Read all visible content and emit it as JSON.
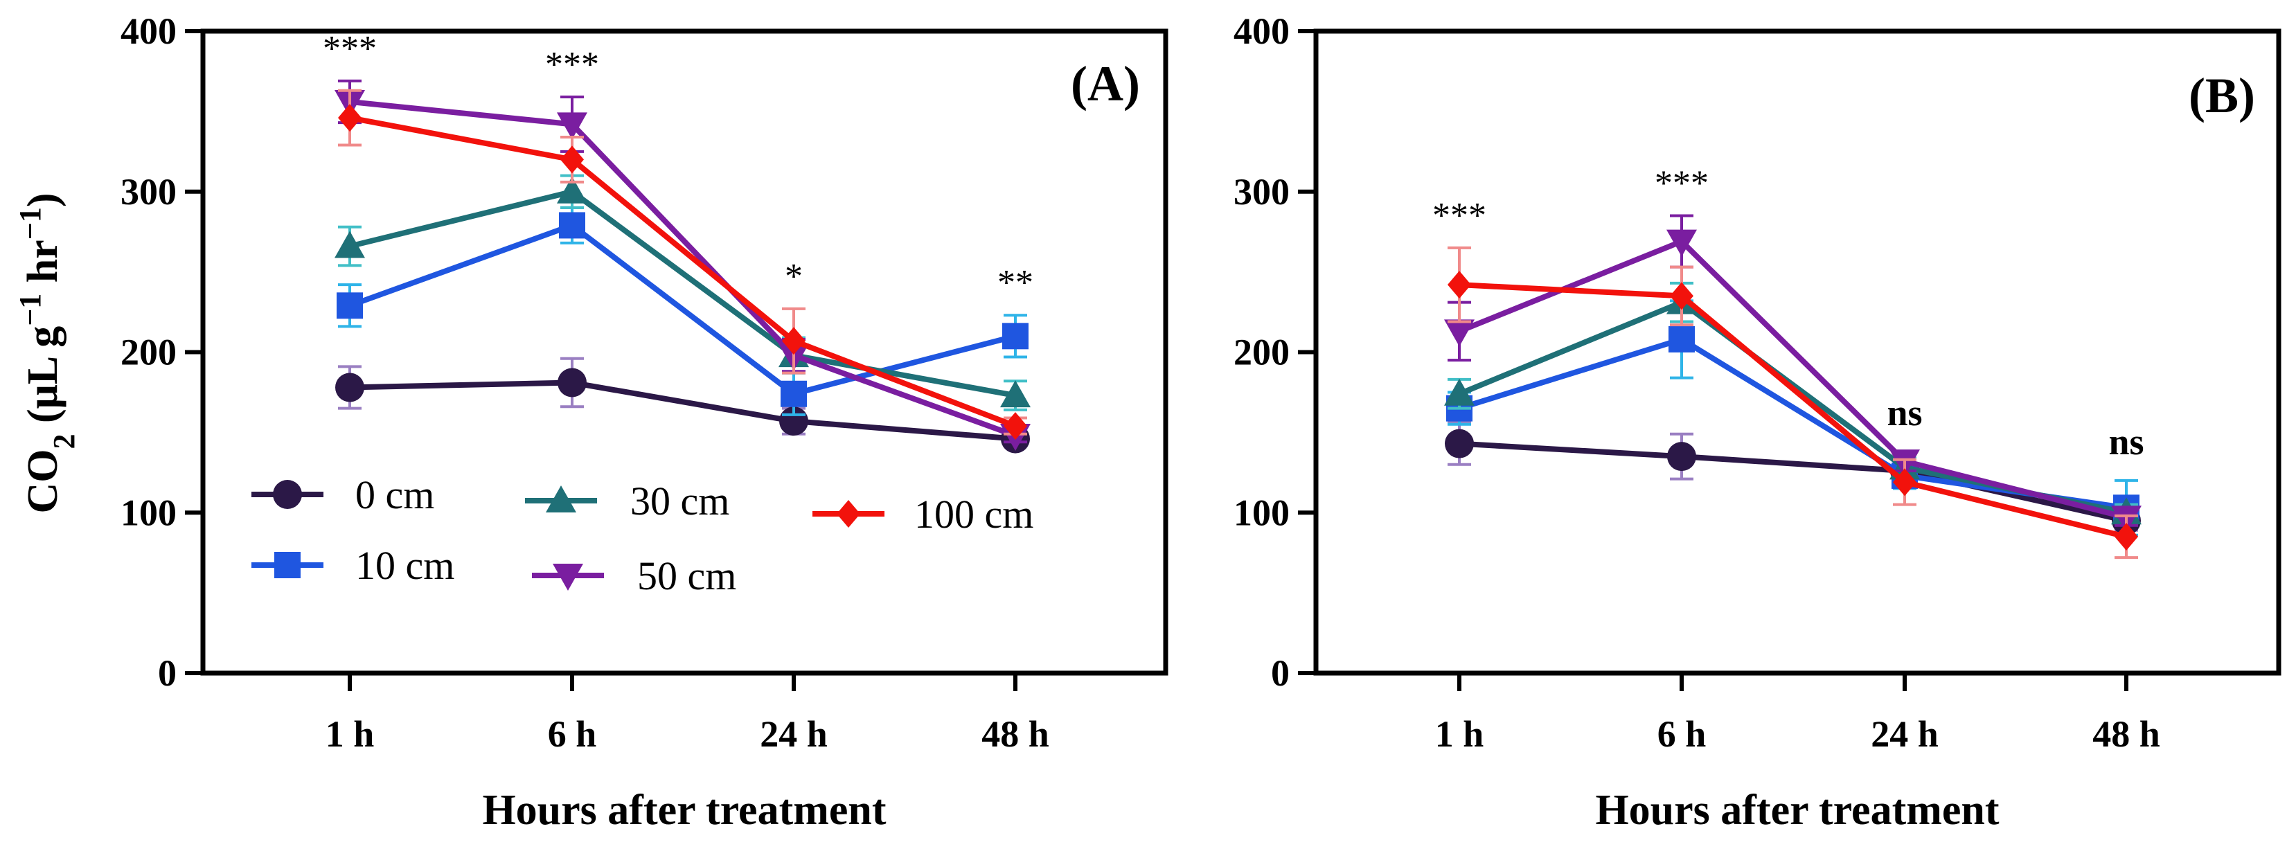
{
  "chart_data": {
    "type": "line",
    "categories": [
      "1 h",
      "6 h",
      "24 h",
      "48 h"
    ],
    "xlabel": "Hours after treatment",
    "ylabel": {
      "base": "CO",
      "base_sub": "2",
      "unit": " (μL g",
      "sup1": "−1",
      "unit2": " hr",
      "sup2": "−1",
      "close": ")"
    },
    "ylim": [
      0,
      400
    ],
    "yticks": [
      "0",
      "100",
      "200",
      "300",
      "400"
    ],
    "grid": false,
    "legend_order": [
      "0 cm",
      "10 cm",
      "30 cm",
      "50 cm",
      "100 cm"
    ],
    "series_styles": [
      {
        "name": "0 cm",
        "color": "#2b1847",
        "err_color": "#9a7fc2",
        "marker": "circle"
      },
      {
        "name": "10 cm",
        "color": "#1f56e0",
        "err_color": "#2fb4e8",
        "marker": "square"
      },
      {
        "name": "30 cm",
        "color": "#1f7077",
        "err_color": "#41bfc7",
        "marker": "triangle-up"
      },
      {
        "name": "50 cm",
        "color": "#7a1ea0",
        "err_color": "#7a1ea0",
        "marker": "triangle-down"
      },
      {
        "name": "100 cm",
        "color": "#f2120c",
        "err_color": "#f08a8a",
        "marker": "diamond"
      }
    ],
    "panels": [
      {
        "label": "(A)",
        "series": [
          {
            "name": "0 cm",
            "values": [
              178,
              181,
              157,
              146
            ],
            "errors": [
              13,
              15,
              8,
              4
            ]
          },
          {
            "name": "10 cm",
            "values": [
              229,
              279,
              174,
              210
            ],
            "errors": [
              13,
              11,
              13,
              13
            ]
          },
          {
            "name": "30 cm",
            "values": [
              266,
              300,
              198,
              173
            ],
            "errors": [
              12,
              10,
              11,
              9
            ]
          },
          {
            "name": "50 cm",
            "values": [
              356,
              342,
              198,
              148
            ],
            "errors": [
              13,
              17,
              10,
              4
            ]
          },
          {
            "name": "100 cm",
            "values": [
              346,
              320,
              207,
              154
            ],
            "errors": [
              17,
              14,
              20,
              5
            ]
          }
        ],
        "significance": [
          "***",
          "***",
          "*",
          "**"
        ]
      },
      {
        "label": "(B)",
        "series": [
          {
            "name": "0 cm",
            "values": [
              143,
              135,
              126,
              95
            ],
            "errors": [
              13,
              14,
              5,
              6
            ]
          },
          {
            "name": "10 cm",
            "values": [
              165,
              208,
              123,
              103
            ],
            "errors": [
              10,
              24,
              8,
              17
            ]
          },
          {
            "name": "30 cm",
            "values": [
              174,
              231,
              128,
              100
            ],
            "errors": [
              9,
              12,
              6,
              5
            ]
          },
          {
            "name": "50 cm",
            "values": [
              213,
              269,
              132,
              97
            ],
            "errors": [
              18,
              16,
              6,
              5
            ]
          },
          {
            "name": "100 cm",
            "values": [
              242,
              235,
              119,
              85
            ],
            "errors": [
              23,
              18,
              14,
              13
            ]
          }
        ],
        "significance": [
          "***",
          "***",
          "ns",
          "ns"
        ]
      }
    ]
  }
}
